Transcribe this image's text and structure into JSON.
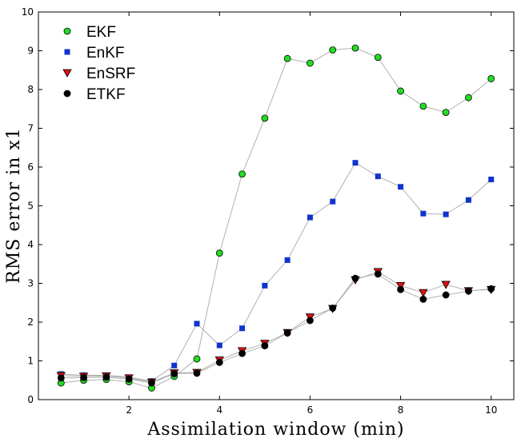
{
  "chart_data": {
    "type": "line",
    "title": "",
    "xlabel": "Assimilation window (min)",
    "ylabel": "RMS error in x1",
    "xlim": [
      0,
      10.5
    ],
    "ylim": [
      0,
      10
    ],
    "xticks": [
      2,
      4,
      6,
      8,
      10
    ],
    "yticks": [
      0,
      1,
      2,
      3,
      4,
      5,
      6,
      7,
      8,
      9,
      10
    ],
    "grid": false,
    "legend_position": "top-left",
    "x": [
      0.5,
      1,
      1.5,
      2,
      2.5,
      3,
      3.5,
      4,
      4.5,
      5,
      5.5,
      6,
      6.5,
      7,
      7.5,
      8,
      8.5,
      9,
      9.5,
      10
    ],
    "series": [
      {
        "name": "EKF",
        "marker": "circle",
        "color": "#22dd22",
        "values": [
          0.43,
          0.5,
          0.52,
          0.46,
          0.3,
          0.6,
          1.05,
          3.78,
          5.82,
          7.26,
          8.8,
          8.68,
          9.02,
          9.07,
          8.83,
          7.96,
          7.57,
          7.41,
          7.79,
          8.28
        ]
      },
      {
        "name": "EnKF",
        "marker": "square",
        "color": "#1133cc",
        "values": [
          0.66,
          0.63,
          0.63,
          0.58,
          0.48,
          0.88,
          1.96,
          1.4,
          1.84,
          2.94,
          3.6,
          4.7,
          5.11,
          6.11,
          5.76,
          5.49,
          4.8,
          4.78,
          5.15,
          5.68
        ]
      },
      {
        "name": "EnSRF",
        "marker": "triangle-down",
        "color": "#dd1111",
        "values": [
          0.62,
          0.6,
          0.61,
          0.56,
          0.45,
          0.69,
          0.7,
          1.02,
          1.26,
          1.45,
          1.73,
          2.13,
          2.35,
          3.09,
          3.3,
          2.94,
          2.76,
          2.97,
          2.81,
          2.84
        ]
      },
      {
        "name": "ETKF",
        "marker": "circle",
        "color": "#000000",
        "values": [
          0.56,
          0.57,
          0.58,
          0.53,
          0.43,
          0.67,
          0.68,
          0.96,
          1.19,
          1.39,
          1.72,
          2.04,
          2.36,
          3.13,
          3.24,
          2.84,
          2.59,
          2.7,
          2.8,
          2.86
        ]
      }
    ]
  }
}
